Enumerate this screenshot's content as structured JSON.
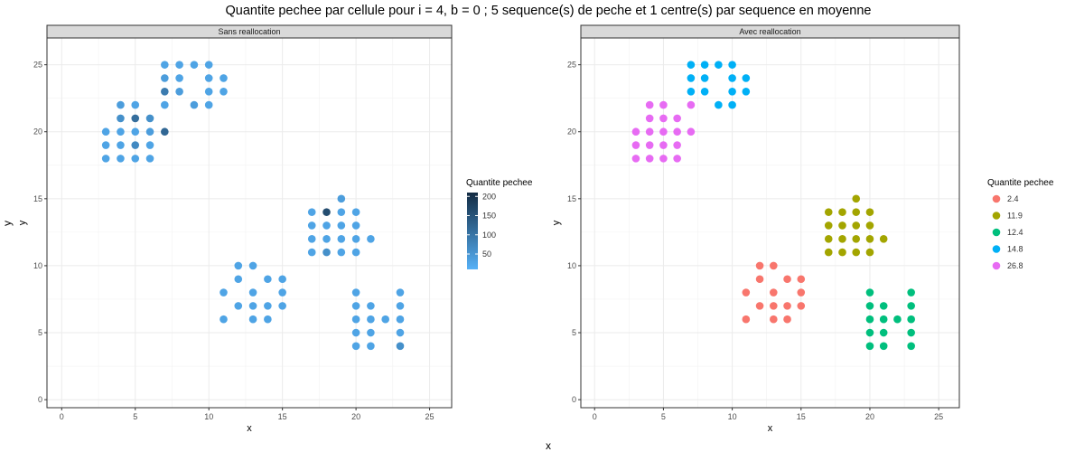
{
  "title": "Quantite pechee par cellule pour i = 4, b = 0 ; 5 sequence(s) de peche et 1 centre(s) par sequence en moyenne",
  "outer_xlabel": "x",
  "outer_ylabel": "y",
  "chart_data": [
    {
      "type": "scatter",
      "panel": "Sans reallocation",
      "xlabel": "x",
      "ylabel": "y",
      "xlim": [
        -1,
        26.5
      ],
      "ylim": [
        -0.6,
        27
      ],
      "xticks": [
        0,
        5,
        10,
        15,
        20,
        25
      ],
      "yticks": [
        0,
        5,
        10,
        15,
        20,
        25
      ],
      "grid": true,
      "legend": {
        "title": "Quantite pechee",
        "type": "colorbar",
        "placement": "right",
        "ticks": [
          50,
          100,
          150,
          200
        ],
        "range": [
          10,
          210
        ],
        "color_low": "#56B1F7",
        "color_high": "#132B43"
      },
      "points": [
        {
          "x": 3,
          "y": 18,
          "v": 30
        },
        {
          "x": 3,
          "y": 19,
          "v": 30
        },
        {
          "x": 3,
          "y": 20,
          "v": 30
        },
        {
          "x": 4,
          "y": 18,
          "v": 30
        },
        {
          "x": 4,
          "y": 19,
          "v": 30
        },
        {
          "x": 4,
          "y": 20,
          "v": 30
        },
        {
          "x": 4,
          "y": 21,
          "v": 60
        },
        {
          "x": 4,
          "y": 22,
          "v": 40
        },
        {
          "x": 5,
          "y": 18,
          "v": 30
        },
        {
          "x": 5,
          "y": 19,
          "v": 70
        },
        {
          "x": 5,
          "y": 20,
          "v": 30
        },
        {
          "x": 5,
          "y": 21,
          "v": 110
        },
        {
          "x": 5,
          "y": 22,
          "v": 30
        },
        {
          "x": 6,
          "y": 18,
          "v": 30
        },
        {
          "x": 6,
          "y": 19,
          "v": 30
        },
        {
          "x": 6,
          "y": 20,
          "v": 40
        },
        {
          "x": 6,
          "y": 21,
          "v": 60
        },
        {
          "x": 7,
          "y": 20,
          "v": 120
        },
        {
          "x": 7,
          "y": 22,
          "v": 30
        },
        {
          "x": 7,
          "y": 23,
          "v": 90
        },
        {
          "x": 7,
          "y": 24,
          "v": 40
        },
        {
          "x": 7,
          "y": 25,
          "v": 30
        },
        {
          "x": 8,
          "y": 23,
          "v": 40
        },
        {
          "x": 8,
          "y": 24,
          "v": 30
        },
        {
          "x": 8,
          "y": 25,
          "v": 30
        },
        {
          "x": 9,
          "y": 22,
          "v": 40
        },
        {
          "x": 9,
          "y": 25,
          "v": 30
        },
        {
          "x": 10,
          "y": 22,
          "v": 30
        },
        {
          "x": 10,
          "y": 23,
          "v": 30
        },
        {
          "x": 10,
          "y": 24,
          "v": 30
        },
        {
          "x": 10,
          "y": 25,
          "v": 30
        },
        {
          "x": 11,
          "y": 23,
          "v": 30
        },
        {
          "x": 11,
          "y": 24,
          "v": 30
        },
        {
          "x": 11,
          "y": 6,
          "v": 30
        },
        {
          "x": 11,
          "y": 8,
          "v": 30
        },
        {
          "x": 12,
          "y": 7,
          "v": 30
        },
        {
          "x": 12,
          "y": 9,
          "v": 30
        },
        {
          "x": 12,
          "y": 10,
          "v": 30
        },
        {
          "x": 13,
          "y": 6,
          "v": 30
        },
        {
          "x": 13,
          "y": 7,
          "v": 30
        },
        {
          "x": 13,
          "y": 8,
          "v": 30
        },
        {
          "x": 13,
          "y": 10,
          "v": 30
        },
        {
          "x": 14,
          "y": 6,
          "v": 30
        },
        {
          "x": 14,
          "y": 7,
          "v": 30
        },
        {
          "x": 14,
          "y": 9,
          "v": 30
        },
        {
          "x": 15,
          "y": 7,
          "v": 30
        },
        {
          "x": 15,
          "y": 8,
          "v": 30
        },
        {
          "x": 15,
          "y": 9,
          "v": 30
        },
        {
          "x": 17,
          "y": 11,
          "v": 30
        },
        {
          "x": 17,
          "y": 12,
          "v": 30
        },
        {
          "x": 17,
          "y": 13,
          "v": 30
        },
        {
          "x": 17,
          "y": 14,
          "v": 30
        },
        {
          "x": 18,
          "y": 11,
          "v": 60
        },
        {
          "x": 18,
          "y": 12,
          "v": 30
        },
        {
          "x": 18,
          "y": 13,
          "v": 30
        },
        {
          "x": 18,
          "y": 14,
          "v": 160
        },
        {
          "x": 19,
          "y": 11,
          "v": 30
        },
        {
          "x": 19,
          "y": 12,
          "v": 30
        },
        {
          "x": 19,
          "y": 13,
          "v": 30
        },
        {
          "x": 19,
          "y": 14,
          "v": 30
        },
        {
          "x": 19,
          "y": 15,
          "v": 40
        },
        {
          "x": 20,
          "y": 11,
          "v": 30
        },
        {
          "x": 20,
          "y": 12,
          "v": 30
        },
        {
          "x": 20,
          "y": 13,
          "v": 30
        },
        {
          "x": 20,
          "y": 14,
          "v": 30
        },
        {
          "x": 21,
          "y": 12,
          "v": 30
        },
        {
          "x": 20,
          "y": 4,
          "v": 30
        },
        {
          "x": 20,
          "y": 5,
          "v": 30
        },
        {
          "x": 20,
          "y": 6,
          "v": 30
        },
        {
          "x": 20,
          "y": 7,
          "v": 30
        },
        {
          "x": 20,
          "y": 8,
          "v": 30
        },
        {
          "x": 21,
          "y": 4,
          "v": 30
        },
        {
          "x": 21,
          "y": 5,
          "v": 30
        },
        {
          "x": 21,
          "y": 6,
          "v": 30
        },
        {
          "x": 21,
          "y": 7,
          "v": 30
        },
        {
          "x": 22,
          "y": 6,
          "v": 30
        },
        {
          "x": 23,
          "y": 4,
          "v": 60
        },
        {
          "x": 23,
          "y": 5,
          "v": 30
        },
        {
          "x": 23,
          "y": 6,
          "v": 30
        },
        {
          "x": 23,
          "y": 7,
          "v": 30
        },
        {
          "x": 23,
          "y": 8,
          "v": 30
        }
      ]
    },
    {
      "type": "scatter",
      "panel": "Avec reallocation",
      "xlabel": "x",
      "ylabel": "y",
      "xlim": [
        -1,
        26.5
      ],
      "ylim": [
        -0.6,
        27
      ],
      "xticks": [
        0,
        5,
        10,
        15,
        20,
        25
      ],
      "yticks": [
        0,
        5,
        10,
        15,
        20,
        25
      ],
      "grid": true,
      "legend": {
        "title": "Quantite pechee",
        "type": "categorical",
        "placement": "right"
      },
      "series": [
        {
          "name": "2.4",
          "color": "#F8766D",
          "points": [
            [
              11,
              6
            ],
            [
              11,
              8
            ],
            [
              12,
              7
            ],
            [
              12,
              9
            ],
            [
              12,
              10
            ],
            [
              13,
              6
            ],
            [
              13,
              7
            ],
            [
              13,
              8
            ],
            [
              13,
              10
            ],
            [
              14,
              6
            ],
            [
              14,
              7
            ],
            [
              14,
              9
            ],
            [
              15,
              7
            ],
            [
              15,
              8
            ],
            [
              15,
              9
            ]
          ]
        },
        {
          "name": "11.9",
          "color": "#A3A500",
          "points": [
            [
              17,
              11
            ],
            [
              17,
              12
            ],
            [
              17,
              13
            ],
            [
              17,
              14
            ],
            [
              18,
              11
            ],
            [
              18,
              12
            ],
            [
              18,
              13
            ],
            [
              18,
              14
            ],
            [
              19,
              11
            ],
            [
              19,
              12
            ],
            [
              19,
              13
            ],
            [
              19,
              14
            ],
            [
              19,
              15
            ],
            [
              20,
              11
            ],
            [
              20,
              12
            ],
            [
              20,
              13
            ],
            [
              20,
              14
            ],
            [
              21,
              12
            ]
          ]
        },
        {
          "name": "12.4",
          "color": "#00BF7D",
          "points": [
            [
              20,
              4
            ],
            [
              20,
              5
            ],
            [
              20,
              6
            ],
            [
              20,
              7
            ],
            [
              20,
              8
            ],
            [
              21,
              4
            ],
            [
              21,
              5
            ],
            [
              21,
              6
            ],
            [
              21,
              7
            ],
            [
              22,
              6
            ],
            [
              23,
              4
            ],
            [
              23,
              5
            ],
            [
              23,
              6
            ],
            [
              23,
              7
            ],
            [
              23,
              8
            ]
          ]
        },
        {
          "name": "14.8",
          "color": "#00B0F6",
          "points": [
            [
              7,
              23
            ],
            [
              7,
              24
            ],
            [
              7,
              25
            ],
            [
              8,
              23
            ],
            [
              8,
              24
            ],
            [
              8,
              25
            ],
            [
              9,
              22
            ],
            [
              9,
              25
            ],
            [
              10,
              22
            ],
            [
              10,
              23
            ],
            [
              10,
              24
            ],
            [
              10,
              25
            ],
            [
              11,
              23
            ],
            [
              11,
              24
            ]
          ]
        },
        {
          "name": "26.8",
          "color": "#E76BF3",
          "points": [
            [
              3,
              18
            ],
            [
              3,
              19
            ],
            [
              3,
              20
            ],
            [
              4,
              18
            ],
            [
              4,
              19
            ],
            [
              4,
              20
            ],
            [
              4,
              21
            ],
            [
              4,
              22
            ],
            [
              5,
              18
            ],
            [
              5,
              19
            ],
            [
              5,
              20
            ],
            [
              5,
              21
            ],
            [
              5,
              22
            ],
            [
              6,
              18
            ],
            [
              6,
              19
            ],
            [
              6,
              20
            ],
            [
              6,
              21
            ],
            [
              7,
              20
            ],
            [
              7,
              22
            ]
          ]
        }
      ]
    }
  ]
}
